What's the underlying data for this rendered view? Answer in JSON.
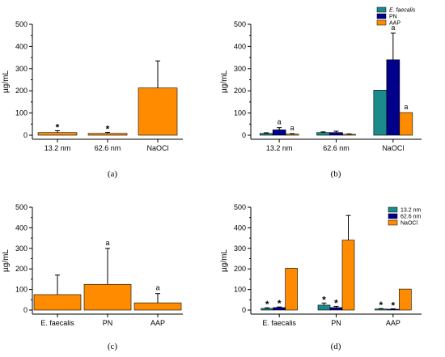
{
  "colors": {
    "teal": "#1a8a8a",
    "navy": "#00008b",
    "orange": "#ff8c00"
  },
  "chart_data": [
    {
      "type": "bar",
      "panel_label": "(a)",
      "ylabel": "µg/mL",
      "ylim": [
        0,
        500
      ],
      "yticks": [
        "0",
        "100",
        "200",
        "300",
        "400",
        "500"
      ],
      "categories": [
        "13.2 nm",
        "62.6 nm",
        "NaOCl"
      ],
      "series": [
        {
          "values": [
            12,
            8,
            213
          ],
          "errors": [
            8,
            5,
            122
          ],
          "color": "orange"
        }
      ],
      "annotations": [
        {
          "series": 0,
          "category": 0,
          "text": "*"
        },
        {
          "series": 0,
          "category": 1,
          "text": "*"
        }
      ]
    },
    {
      "type": "bar",
      "panel_label": "(b)",
      "ylabel": "µg/mL",
      "ylim": [
        0,
        500
      ],
      "yticks": [
        "0",
        "100",
        "200",
        "300",
        "400",
        "500"
      ],
      "categories": [
        "13.2 nm",
        "62.6 nm",
        "NaOCl"
      ],
      "legend": {
        "placement": "top-right"
      },
      "series": [
        {
          "name": "E. faecalis",
          "italic": true,
          "values": [
            8,
            12,
            203
          ],
          "errors": [
            3,
            3,
            0
          ],
          "color": "teal"
        },
        {
          "name": "PN",
          "values": [
            24,
            12,
            340
          ],
          "errors": [
            10,
            6,
            120
          ],
          "color": "navy"
        },
        {
          "name": "AAP",
          "values": [
            5,
            4,
            102
          ],
          "errors": [
            2,
            2,
            0
          ],
          "color": "orange"
        }
      ],
      "annotations": [
        {
          "series": 1,
          "category": 0,
          "text": "a"
        },
        {
          "series": 2,
          "category": 0,
          "text": "a"
        },
        {
          "series": 1,
          "category": 2,
          "text": "a"
        },
        {
          "series": 2,
          "category": 2,
          "text": "a"
        }
      ]
    },
    {
      "type": "bar",
      "panel_label": "(c)",
      "ylabel": "µg/mL",
      "ylim": [
        0,
        500
      ],
      "yticks": [
        "0",
        "100",
        "200",
        "300",
        "400",
        "500"
      ],
      "categories": [
        "E. faecalis",
        "PN",
        "AAP"
      ],
      "series": [
        {
          "values": [
            75,
            125,
            35
          ],
          "errors": [
            95,
            175,
            45
          ],
          "color": "orange"
        }
      ],
      "annotations": [
        {
          "series": 0,
          "category": 1,
          "text": "a"
        },
        {
          "series": 0,
          "category": 2,
          "text": "a"
        }
      ]
    },
    {
      "type": "bar",
      "panel_label": "(d)",
      "ylabel": "µg/mL",
      "ylim": [
        0,
        500
      ],
      "yticks": [
        "0",
        "100",
        "200",
        "300",
        "400",
        "500"
      ],
      "categories": [
        "E. faecalis",
        "PN",
        "AAP"
      ],
      "legend": {
        "placement": "top-right"
      },
      "series": [
        {
          "name": "13.2 nm",
          "values": [
            8,
            24,
            5
          ],
          "errors": [
            3,
            10,
            2
          ],
          "color": "teal"
        },
        {
          "name": "62.6 nm",
          "values": [
            12,
            12,
            4
          ],
          "errors": [
            3,
            6,
            2
          ],
          "color": "navy"
        },
        {
          "name": "NaOCl",
          "values": [
            203,
            340,
            102
          ],
          "errors": [
            0,
            120,
            0
          ],
          "color": "orange"
        }
      ],
      "annotations": [
        {
          "series": 0,
          "category": 0,
          "text": "*"
        },
        {
          "series": 1,
          "category": 0,
          "text": "*"
        },
        {
          "series": 0,
          "category": 1,
          "text": "*"
        },
        {
          "series": 1,
          "category": 1,
          "text": "*"
        },
        {
          "series": 0,
          "category": 2,
          "text": "*"
        },
        {
          "series": 1,
          "category": 2,
          "text": "*"
        }
      ]
    }
  ]
}
